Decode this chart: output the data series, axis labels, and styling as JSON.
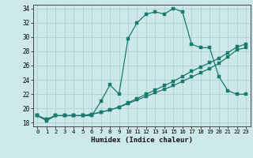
{
  "xlabel": "Humidex (Indice chaleur)",
  "bg_color": "#cce8e8",
  "line_color": "#1a7a6e",
  "grid_color": "#aacece",
  "xlim": [
    -0.5,
    23.5
  ],
  "ylim": [
    17.5,
    34.5
  ],
  "yticks": [
    18,
    20,
    22,
    24,
    26,
    28,
    30,
    32,
    34
  ],
  "xticks": [
    0,
    1,
    2,
    3,
    4,
    5,
    6,
    7,
    8,
    9,
    10,
    11,
    12,
    13,
    14,
    15,
    16,
    17,
    18,
    19,
    20,
    21,
    22,
    23
  ],
  "series1_x": [
    0,
    1,
    2,
    3,
    4,
    5,
    6,
    7,
    8,
    9,
    10,
    11,
    12,
    13,
    14,
    15,
    16,
    17,
    18,
    19,
    20,
    21,
    22,
    23
  ],
  "series1_y": [
    19.0,
    18.3,
    19.0,
    19.0,
    19.0,
    19.0,
    19.0,
    21.0,
    23.3,
    22.0,
    29.8,
    32.0,
    33.2,
    33.5,
    33.2,
    34.0,
    33.5,
    29.0,
    28.5,
    28.5,
    24.5,
    22.5,
    22.0,
    22.0
  ],
  "series2_x": [
    0,
    1,
    2,
    3,
    4,
    5,
    6,
    7,
    8,
    9,
    10,
    11,
    12,
    13,
    14,
    15,
    16,
    17,
    18,
    19,
    20,
    21,
    22,
    23
  ],
  "series2_y": [
    19.0,
    18.5,
    19.0,
    19.0,
    19.0,
    19.0,
    19.2,
    19.5,
    19.8,
    20.2,
    20.7,
    21.2,
    21.7,
    22.2,
    22.7,
    23.2,
    23.8,
    24.4,
    25.0,
    25.6,
    26.3,
    27.2,
    28.2,
    28.5
  ],
  "series3_x": [
    0,
    1,
    2,
    3,
    4,
    5,
    6,
    7,
    8,
    9,
    10,
    11,
    12,
    13,
    14,
    15,
    16,
    17,
    18,
    19,
    20,
    21,
    22,
    23
  ],
  "series3_y": [
    19.0,
    18.5,
    19.0,
    19.0,
    19.0,
    19.0,
    19.2,
    19.5,
    19.8,
    20.2,
    20.8,
    21.4,
    22.0,
    22.6,
    23.2,
    23.8,
    24.5,
    25.2,
    25.8,
    26.4,
    27.0,
    27.8,
    28.6,
    29.0
  ]
}
